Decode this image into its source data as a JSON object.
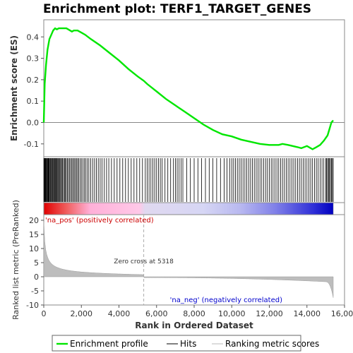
{
  "chart_data": {
    "type": "line",
    "title": "Enrichment plot: TERF1_TARGET_GENES",
    "xlabel": "Rank in Ordered Dataset",
    "es_panel": {
      "ylabel": "Enrichment score (ES)",
      "ylim": [
        -0.16,
        0.48
      ],
      "yticks": [
        "-0.1",
        "0.0",
        "0.1",
        "0.2",
        "0.3",
        "0.4"
      ],
      "series": [
        {
          "name": "Enrichment profile",
          "color": "#00e600",
          "x": [
            0,
            50,
            120,
            200,
            300,
            400,
            500,
            600,
            700,
            800,
            900,
            1000,
            1100,
            1200,
            1300,
            1400,
            1500,
            1600,
            1700,
            1800,
            1900,
            2000,
            2200,
            2500,
            3000,
            3500,
            4000,
            4500,
            5000,
            5318,
            5500,
            6000,
            6500,
            7000,
            7500,
            8000,
            8500,
            9000,
            9500,
            10000,
            10500,
            11000,
            11500,
            12000,
            12500,
            12700,
            13000,
            13500,
            13700,
            14000,
            14300,
            14500,
            14700,
            14900,
            15100,
            15200,
            15300,
            15400
          ],
          "y": [
            0.0,
            0.18,
            0.27,
            0.34,
            0.39,
            0.41,
            0.43,
            0.44,
            0.435,
            0.44,
            0.44,
            0.44,
            0.44,
            0.44,
            0.435,
            0.43,
            0.425,
            0.43,
            0.43,
            0.43,
            0.425,
            0.42,
            0.41,
            0.39,
            0.36,
            0.325,
            0.29,
            0.25,
            0.215,
            0.195,
            0.18,
            0.145,
            0.11,
            0.08,
            0.05,
            0.02,
            -0.01,
            -0.035,
            -0.055,
            -0.065,
            -0.08,
            -0.09,
            -0.1,
            -0.105,
            -0.105,
            -0.1,
            -0.105,
            -0.115,
            -0.12,
            -0.11,
            -0.125,
            -0.115,
            -0.105,
            -0.085,
            -0.06,
            -0.03,
            0.0,
            0.01
          ]
        }
      ]
    },
    "hits_legend": "Hits",
    "hits": [
      10,
      30,
      55,
      80,
      110,
      140,
      170,
      200,
      230,
      260,
      290,
      330,
      360,
      400,
      430,
      470,
      500,
      540,
      580,
      620,
      660,
      700,
      740,
      780,
      820,
      860,
      900,
      950,
      1000,
      1050,
      1100,
      1150,
      1200,
      1260,
      1320,
      1380,
      1440,
      1500,
      1560,
      1620,
      1680,
      1740,
      1800,
      1860,
      1930,
      2000,
      2080,
      2160,
      2240,
      2320,
      2400,
      2500,
      2600,
      2700,
      2800,
      2900,
      3000,
      3100,
      3220,
      3340,
      3460,
      3600,
      3750,
      3900,
      4050,
      4200,
      4350,
      4500,
      4650,
      4800,
      4950,
      5100,
      5250,
      5400,
      5500,
      5600,
      5700,
      5800,
      5900,
      6000,
      6100,
      6200,
      6300,
      6450,
      6600,
      6750,
      6900,
      7000,
      7100,
      7200,
      7300,
      7400,
      7600,
      7800,
      8000,
      8200,
      8400,
      8600,
      8800,
      9000,
      9200,
      9400,
      9600,
      9750,
      9900,
      10000,
      10100,
      10200,
      10300,
      10400,
      10500,
      10600,
      10700,
      10800,
      10900,
      11000,
      11100,
      11200,
      11300,
      11400,
      11500,
      11600,
      11700,
      11800,
      11900,
      12000,
      12100,
      12200,
      12300,
      12400,
      12500,
      12600,
      12700,
      12800,
      12900,
      13000,
      13100,
      13200,
      13300,
      13400,
      13500,
      13600,
      13700,
      13800,
      13900,
      14000,
      14100,
      14200,
      14300,
      14400,
      14500,
      14600,
      14700,
      14800,
      14900,
      15000,
      15050,
      15100,
      15150,
      15200,
      15250,
      15300,
      15350,
      15400
    ],
    "metric_panel": {
      "ylabel": "Ranked list metric (PreRanked)",
      "ylim": [
        -10,
        22
      ],
      "yticks": [
        "-10",
        "-5",
        "0",
        "5",
        "10",
        "15",
        "20"
      ],
      "legend": "Ranking metric scores",
      "zero_cross_label": "Zero cross at 5318",
      "zero_cross": 5318,
      "pos_label": "'na_pos' (positively correlated)",
      "neg_label": "'na_neg' (negatively correlated)",
      "pos_color": "#cc0000",
      "neg_color": "#0000cc"
    },
    "xlim": [
      0,
      16000
    ],
    "xticks": [
      "0",
      "2,000",
      "4,000",
      "6,000",
      "8,000",
      "10,000",
      "12,000",
      "14,000",
      "16,000"
    ],
    "n_genes": 15400
  }
}
